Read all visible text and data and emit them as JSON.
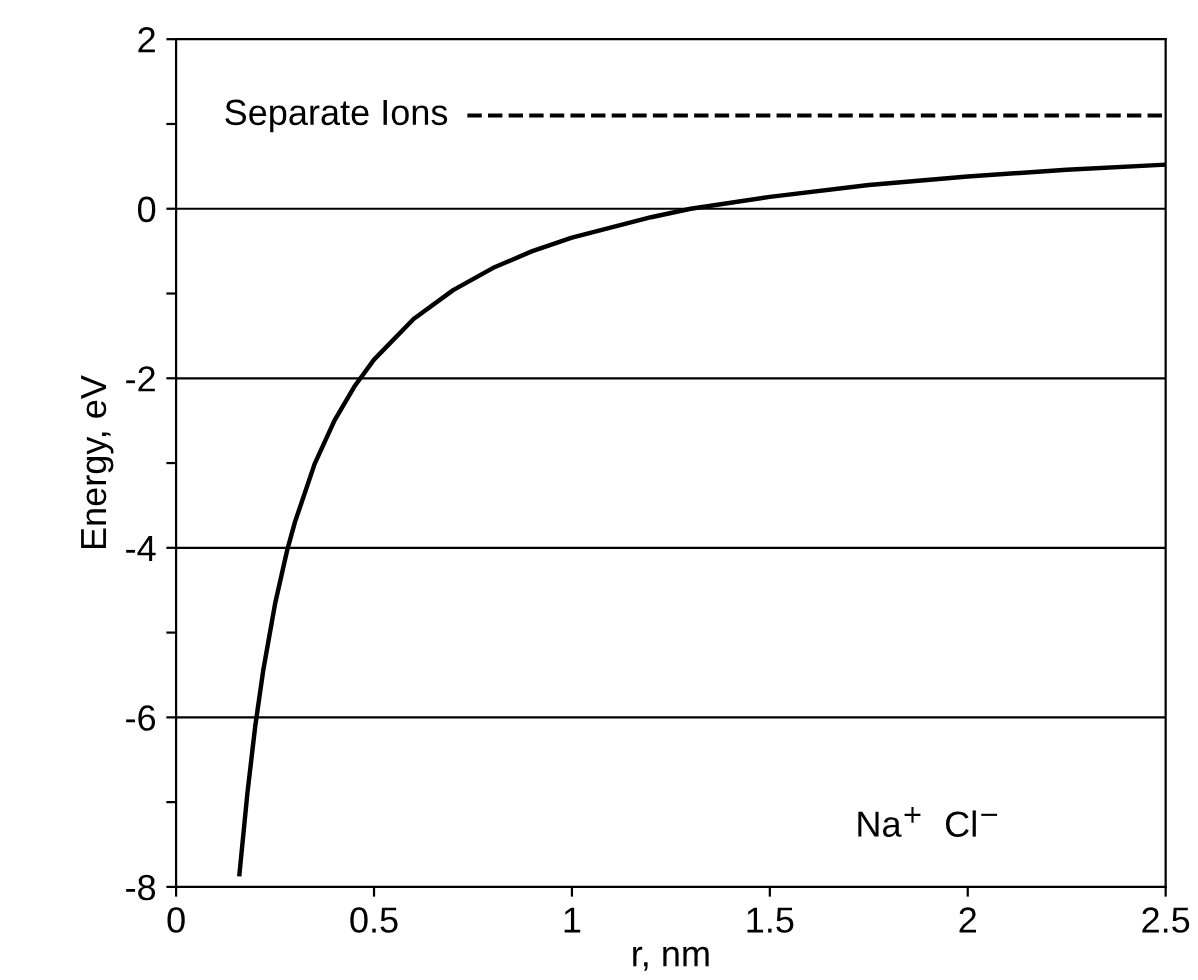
{
  "chart_data": {
    "type": "line",
    "xlabel": "r, nm",
    "ylabel": "Energy, eV",
    "x": [
      0.16,
      0.18,
      0.2,
      0.22,
      0.25,
      0.28,
      0.3,
      0.35,
      0.4,
      0.45,
      0.5,
      0.6,
      0.7,
      0.8,
      0.9,
      1.0,
      1.2,
      1.3,
      1.5,
      1.75,
      2.0,
      2.25,
      2.5
    ],
    "series": [
      {
        "color": "#000000",
        "values": [
          -7.85,
          -6.9,
          -6.1,
          -5.45,
          -4.66,
          -4.04,
          -3.7,
          -3.01,
          -2.5,
          -2.1,
          -1.78,
          -1.3,
          -0.96,
          -0.7,
          -0.5,
          -0.34,
          -0.1,
          0.0,
          0.14,
          0.28,
          0.38,
          0.46,
          0.52
        ]
      }
    ],
    "xlim": [
      0,
      2.5
    ],
    "xticks": [
      0,
      0.5,
      1,
      1.5,
      2,
      2.5
    ],
    "ylim": [
      -8,
      2
    ],
    "yticks": [
      -8,
      {
        "value": -7,
        "label": null
      },
      -6,
      {
        "value": -5,
        "label": null
      },
      -4,
      {
        "value": -3,
        "label": null
      },
      -2,
      {
        "value": -1,
        "label": null
      },
      0,
      {
        "value": 1,
        "label": null
      },
      2
    ],
    "grid": "y",
    "line_style": "solid",
    "marker": "none",
    "ref_lines": [
      {
        "axis": "y",
        "value": 1.1,
        "label": "Separate Ions",
        "line_style": "dashed",
        "color": "#000000"
      }
    ],
    "annotations": [
      "Na$^{+}$  Cl$^{−}$"
    ]
  }
}
